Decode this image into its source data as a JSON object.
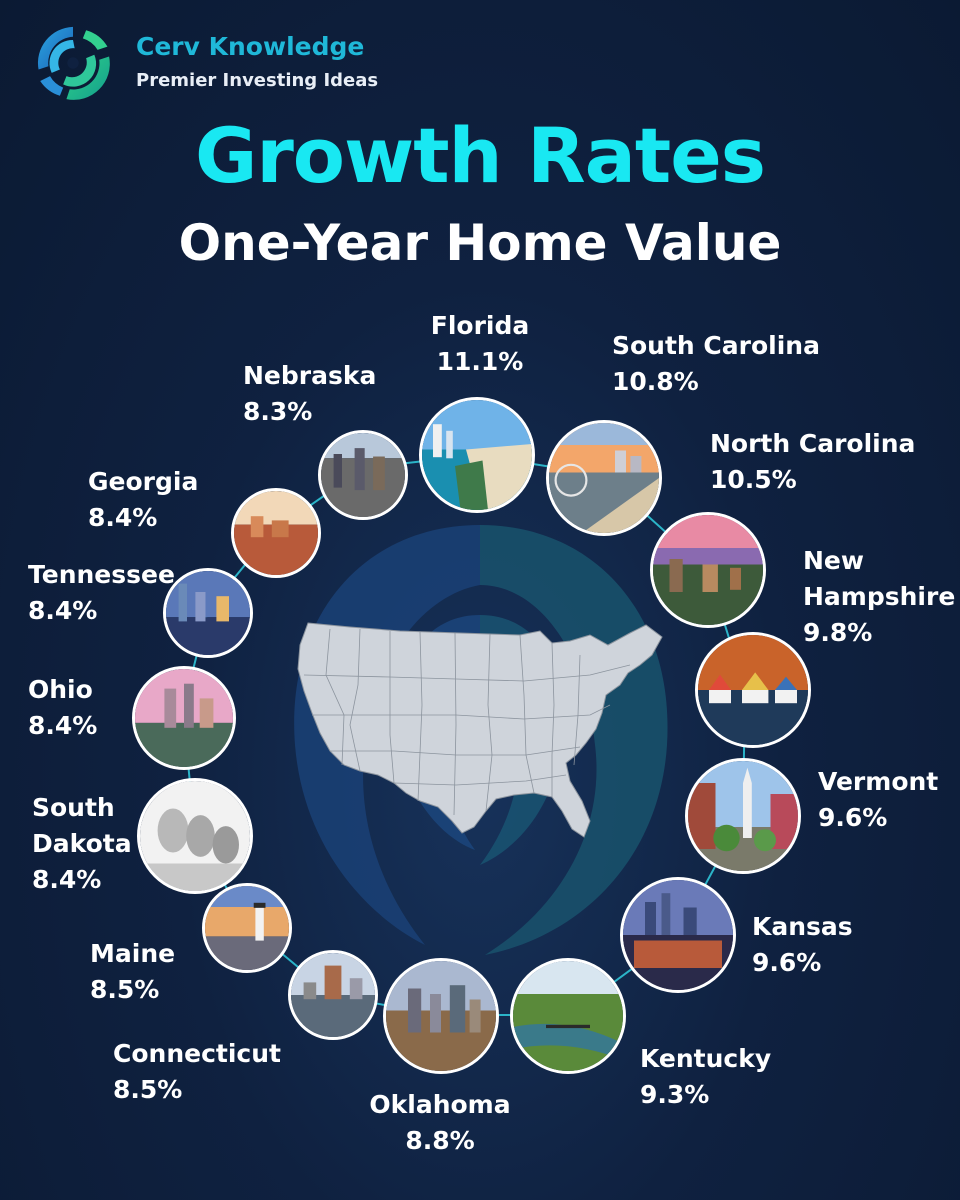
{
  "brand": {
    "name": "Cerv Knowledge",
    "tagline": "Premier Investing Ideas",
    "logo_icon": "swirl-logo-icon"
  },
  "title": "Growth Rates",
  "subtitle": "One-Year Home Value",
  "colors": {
    "background": "#0f2140",
    "title": "#19e8f2",
    "brand": "#1fb8d8",
    "ring_line": "#2bb4c8"
  },
  "map_icon": "us-map-icon",
  "states": [
    {
      "name": "Florida",
      "value": "11.1%"
    },
    {
      "name": "South Carolina",
      "value": "10.8%"
    },
    {
      "name": "North Carolina",
      "value": "10.5%"
    },
    {
      "name": "New Hampshire",
      "value": "9.8%"
    },
    {
      "name": "Vermont",
      "value": "9.6%"
    },
    {
      "name": "Kansas",
      "value": "9.6%"
    },
    {
      "name": "Kentucky",
      "value": "9.3%"
    },
    {
      "name": "Oklahoma",
      "value": "8.8%"
    },
    {
      "name": "Connecticut",
      "value": "8.5%"
    },
    {
      "name": "Maine",
      "value": "8.5%"
    },
    {
      "name": "South Dakota",
      "value": "8.4%"
    },
    {
      "name": "Ohio",
      "value": "8.4%"
    },
    {
      "name": "Tennessee",
      "value": "8.4%"
    },
    {
      "name": "Georgia",
      "value": "8.4%"
    },
    {
      "name": "Nebraska",
      "value": "8.3%"
    }
  ]
}
